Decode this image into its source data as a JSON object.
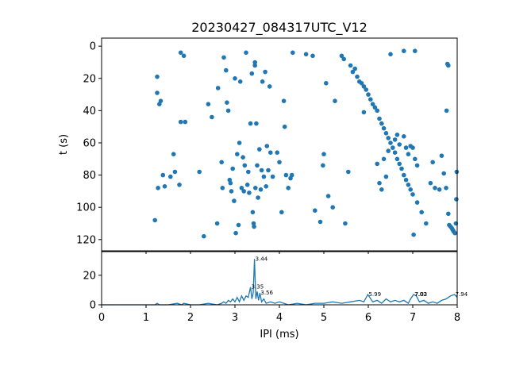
{
  "title": "20230427_084317UTC_V12",
  "colors": {
    "series": "#1f77b4",
    "axes": "#000000",
    "background": "#ffffff"
  },
  "chart_data": [
    {
      "type": "scatter",
      "title": "20230427_084317UTC_V12",
      "xlabel": "",
      "ylabel": "t (s)",
      "xlim": [
        0,
        8
      ],
      "ylim": [
        0,
        127
      ],
      "y_inverted": true,
      "grid": false,
      "xticks": [
        0,
        1,
        2,
        3,
        4,
        5,
        6,
        7,
        8
      ],
      "xticks_labeled": false,
      "yticks": [
        0,
        20,
        40,
        60,
        80,
        100,
        120
      ],
      "yticklabels": [
        "0",
        "20",
        "40",
        "60",
        "80",
        "100",
        "120"
      ],
      "points": [
        [
          1.25,
          19
        ],
        [
          1.25,
          29
        ],
        [
          1.3,
          36
        ],
        [
          1.33,
          34
        ],
        [
          1.2,
          108
        ],
        [
          1.27,
          88
        ],
        [
          1.38,
          80
        ],
        [
          1.42,
          87
        ],
        [
          1.55,
          81
        ],
        [
          1.62,
          67
        ],
        [
          1.65,
          78
        ],
        [
          1.75,
          86
        ],
        [
          1.78,
          4
        ],
        [
          1.85,
          6
        ],
        [
          1.78,
          47
        ],
        [
          1.88,
          47
        ],
        [
          2.2,
          78
        ],
        [
          2.3,
          118
        ],
        [
          2.4,
          36
        ],
        [
          2.48,
          44
        ],
        [
          2.6,
          110
        ],
        [
          2.62,
          26
        ],
        [
          2.7,
          72
        ],
        [
          2.72,
          88
        ],
        [
          2.75,
          7
        ],
        [
          2.8,
          15
        ],
        [
          2.82,
          35
        ],
        [
          2.85,
          40
        ],
        [
          2.88,
          83
        ],
        [
          2.9,
          85
        ],
        [
          2.92,
          90
        ],
        [
          2.95,
          76
        ],
        [
          2.98,
          96
        ],
        [
          3.0,
          20
        ],
        [
          3.02,
          116
        ],
        [
          3.05,
          67
        ],
        [
          3.08,
          111
        ],
        [
          3.1,
          60
        ],
        [
          3.12,
          22
        ],
        [
          3.15,
          88
        ],
        [
          3.18,
          69
        ],
        [
          3.2,
          90
        ],
        [
          3.22,
          74
        ],
        [
          3.25,
          4
        ],
        [
          3.28,
          86
        ],
        [
          3.3,
          78
        ],
        [
          3.32,
          91
        ],
        [
          3.35,
          48
        ],
        [
          3.38,
          17
        ],
        [
          3.4,
          103
        ],
        [
          3.42,
          110
        ],
        [
          3.43,
          112
        ],
        [
          3.45,
          10
        ],
        [
          3.45,
          12
        ],
        [
          3.46,
          88
        ],
        [
          3.48,
          48
        ],
        [
          3.5,
          74
        ],
        [
          3.52,
          94
        ],
        [
          3.55,
          64
        ],
        [
          3.58,
          89
        ],
        [
          3.6,
          77
        ],
        [
          3.62,
          22
        ],
        [
          3.65,
          81
        ],
        [
          3.68,
          16
        ],
        [
          3.7,
          87
        ],
        [
          3.72,
          62
        ],
        [
          3.75,
          77
        ],
        [
          3.78,
          25
        ],
        [
          3.8,
          66
        ],
        [
          3.85,
          81
        ],
        [
          3.95,
          66
        ],
        [
          4.0,
          72
        ],
        [
          4.05,
          103
        ],
        [
          4.1,
          34
        ],
        [
          4.12,
          50
        ],
        [
          4.15,
          80
        ],
        [
          4.2,
          88
        ],
        [
          4.25,
          82
        ],
        [
          4.28,
          80
        ],
        [
          4.3,
          4
        ],
        [
          4.6,
          5
        ],
        [
          4.75,
          6
        ],
        [
          4.8,
          102
        ],
        [
          4.92,
          109
        ],
        [
          4.98,
          74
        ],
        [
          5.0,
          67
        ],
        [
          5.05,
          23
        ],
        [
          5.1,
          93
        ],
        [
          5.2,
          100
        ],
        [
          5.25,
          34
        ],
        [
          5.4,
          6
        ],
        [
          5.45,
          8
        ],
        [
          5.48,
          110
        ],
        [
          5.55,
          78
        ],
        [
          5.6,
          12
        ],
        [
          5.65,
          16
        ],
        [
          5.7,
          14
        ],
        [
          5.75,
          19
        ],
        [
          5.8,
          22
        ],
        [
          5.85,
          23
        ],
        [
          5.9,
          25
        ],
        [
          5.95,
          27
        ],
        [
          6.0,
          30
        ],
        [
          6.05,
          33
        ],
        [
          6.1,
          36
        ],
        [
          6.15,
          38
        ],
        [
          6.2,
          40
        ],
        [
          6.25,
          45
        ],
        [
          6.3,
          48
        ],
        [
          6.35,
          51
        ],
        [
          6.4,
          54
        ],
        [
          6.45,
          57
        ],
        [
          6.5,
          60
        ],
        [
          6.55,
          63
        ],
        [
          6.6,
          66
        ],
        [
          6.65,
          70
        ],
        [
          6.7,
          73
        ],
        [
          6.75,
          76
        ],
        [
          6.8,
          80
        ],
        [
          6.85,
          83
        ],
        [
          6.9,
          86
        ],
        [
          6.95,
          89
        ],
        [
          7.0,
          92
        ],
        [
          7.02,
          117
        ],
        [
          7.05,
          3
        ],
        [
          7.1,
          97
        ],
        [
          7.2,
          103
        ],
        [
          7.3,
          110
        ],
        [
          7.4,
          85
        ],
        [
          7.5,
          88
        ],
        [
          7.6,
          89
        ],
        [
          7.65,
          68
        ],
        [
          7.7,
          79
        ],
        [
          7.75,
          88
        ],
        [
          7.8,
          104
        ],
        [
          7.82,
          111
        ],
        [
          7.85,
          112
        ],
        [
          7.88,
          113
        ],
        [
          7.9,
          114
        ],
        [
          7.92,
          115
        ],
        [
          7.95,
          116
        ],
        [
          7.97,
          110
        ],
        [
          7.98,
          95
        ],
        [
          7.99,
          78
        ],
        [
          6.5,
          5
        ],
        [
          6.8,
          3
        ],
        [
          7.45,
          72
        ],
        [
          7.8,
          12
        ],
        [
          7.78,
          11
        ],
        [
          7.76,
          40
        ],
        [
          5.9,
          41
        ],
        [
          6.35,
          70
        ],
        [
          6.9,
          67
        ],
        [
          6.95,
          62
        ],
        [
          7.0,
          63
        ],
        [
          7.05,
          70
        ],
        [
          7.1,
          74
        ],
        [
          6.6,
          58
        ],
        [
          6.65,
          55
        ],
        [
          6.7,
          61
        ],
        [
          6.8,
          56
        ],
        [
          6.85,
          63
        ],
        [
          6.45,
          65
        ],
        [
          6.4,
          81
        ],
        [
          6.2,
          73
        ],
        [
          6.25,
          85
        ],
        [
          6.3,
          89
        ]
      ]
    },
    {
      "type": "line",
      "title": "",
      "xlabel": "IPI (ms)",
      "ylabel": "",
      "xlim": [
        0,
        8
      ],
      "ylim": [
        0,
        36
      ],
      "grid": false,
      "xticks": [
        0,
        1,
        2,
        3,
        4,
        5,
        6,
        7,
        8
      ],
      "xticklabels": [
        "0",
        "1",
        "2",
        "3",
        "4",
        "5",
        "6",
        "7",
        "8"
      ],
      "yticks": [
        0,
        20
      ],
      "yticklabels": [
        "0",
        "20"
      ],
      "peaks": [
        {
          "x": 3.44,
          "y": 31,
          "label": "3.44"
        },
        {
          "x": 3.35,
          "y": 12,
          "label": "3.35"
        },
        {
          "x": 3.56,
          "y": 8,
          "label": "3.56"
        },
        {
          "x": 5.99,
          "y": 7,
          "label": "5.99"
        },
        {
          "x": 7.02,
          "y": 7,
          "label": "7.02"
        },
        {
          "x": 7.03,
          "y": 7,
          "label": "7.03"
        },
        {
          "x": 7.94,
          "y": 7,
          "label": "7.94"
        }
      ],
      "x": [
        0,
        0.5,
        1.0,
        1.2,
        1.25,
        1.3,
        1.5,
        1.7,
        1.8,
        1.85,
        2.0,
        2.2,
        2.4,
        2.6,
        2.7,
        2.75,
        2.8,
        2.85,
        2.9,
        2.95,
        3.0,
        3.05,
        3.1,
        3.15,
        3.2,
        3.25,
        3.3,
        3.35,
        3.38,
        3.41,
        3.44,
        3.47,
        3.5,
        3.53,
        3.56,
        3.6,
        3.65,
        3.7,
        3.8,
        3.9,
        4.0,
        4.2,
        4.4,
        4.6,
        4.8,
        5.0,
        5.2,
        5.4,
        5.6,
        5.8,
        5.9,
        5.99,
        6.1,
        6.2,
        6.3,
        6.4,
        6.5,
        6.6,
        6.7,
        6.8,
        6.9,
        6.95,
        7.02,
        7.08,
        7.15,
        7.25,
        7.35,
        7.45,
        7.55,
        7.65,
        7.75,
        7.85,
        7.94,
        8.0
      ],
      "y": [
        0,
        0,
        0,
        0,
        1,
        0,
        0,
        1,
        0,
        1,
        0,
        0,
        1,
        0,
        1,
        2,
        1,
        3,
        2,
        4,
        2,
        5,
        2,
        6,
        3,
        6,
        5,
        12,
        4,
        8,
        31,
        4,
        9,
        3,
        8,
        2,
        4,
        1,
        2,
        1,
        2,
        0,
        1,
        0,
        1,
        1,
        2,
        1,
        2,
        3,
        2,
        7,
        2,
        3,
        1,
        4,
        2,
        3,
        2,
        3,
        1,
        4,
        7,
        6,
        2,
        3,
        1,
        2,
        1,
        3,
        4,
        6,
        7,
        5
      ]
    }
  ]
}
